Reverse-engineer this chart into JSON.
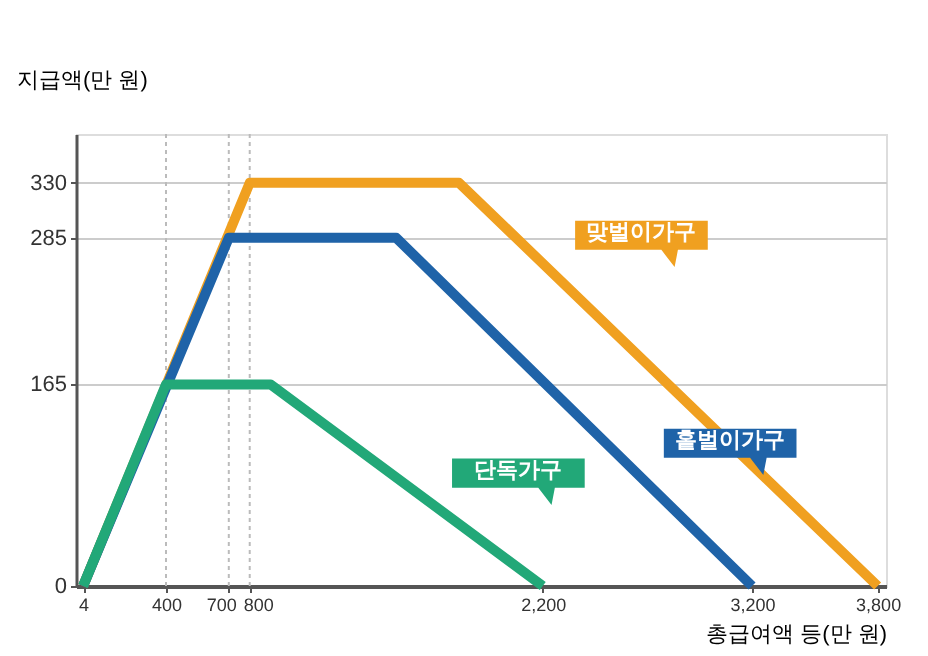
{
  "chart_data": {
    "type": "line",
    "xlabel": "총급여액 등(만 원)",
    "ylabel": "지급액(만 원)",
    "series": [
      {
        "name": "맞벌이가구",
        "color": "#f0a020",
        "x": [
          4,
          800,
          1800,
          3800
        ],
        "values": [
          0,
          330,
          330,
          0
        ]
      },
      {
        "name": "홑벌이가구",
        "color": "#1f63a8",
        "x": [
          4,
          700,
          1500,
          3200
        ],
        "values": [
          0,
          285,
          285,
          0
        ]
      },
      {
        "name": "단독가구",
        "color": "#22a878",
        "x": [
          4,
          400,
          900,
          2200
        ],
        "values": [
          0,
          165,
          165,
          0
        ]
      }
    ],
    "xlim": [
      -30,
      3840
    ],
    "xticks": [
      4,
      400,
      700,
      800,
      {
        "value": 2200,
        "label": "2,200"
      },
      {
        "value": 3200,
        "label": "3,200"
      },
      {
        "value": 3800,
        "label": "3,800"
      }
    ],
    "ylim": [
      0,
      370
    ],
    "yticks": [
      0,
      165,
      285,
      330
    ],
    "grid": "y",
    "marker": "none",
    "line_style": "solid",
    "ref_lines": [
      {
        "axis": "x",
        "value": 400,
        "line_style": "dotted",
        "color": "#bbbbbb"
      },
      {
        "axis": "x",
        "value": 700,
        "line_style": "dotted",
        "color": "#bbbbbb"
      },
      {
        "axis": "x",
        "value": 800,
        "line_style": "dotted",
        "color": "#bbbbbb"
      }
    ]
  }
}
